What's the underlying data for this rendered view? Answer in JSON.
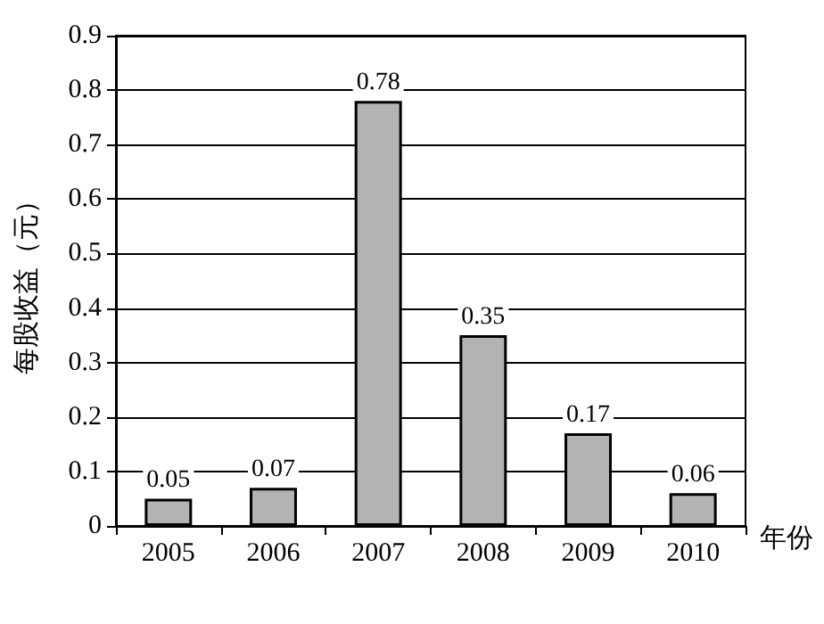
{
  "chart_data": {
    "type": "bar",
    "ylabel": "每股收益（元）",
    "xlabel": "年份",
    "categories": [
      "2005",
      "2006",
      "2007",
      "2008",
      "2009",
      "2010"
    ],
    "values": [
      0.05,
      0.07,
      0.78,
      0.35,
      0.17,
      0.06
    ],
    "color": "#b3b3b3",
    "ylim": [
      0,
      0.9
    ],
    "yticks": [
      0,
      0.1,
      0.2,
      0.3,
      0.4,
      0.5,
      0.6,
      0.7,
      0.8,
      0.9
    ],
    "grid": "y",
    "data_labels": true
  }
}
